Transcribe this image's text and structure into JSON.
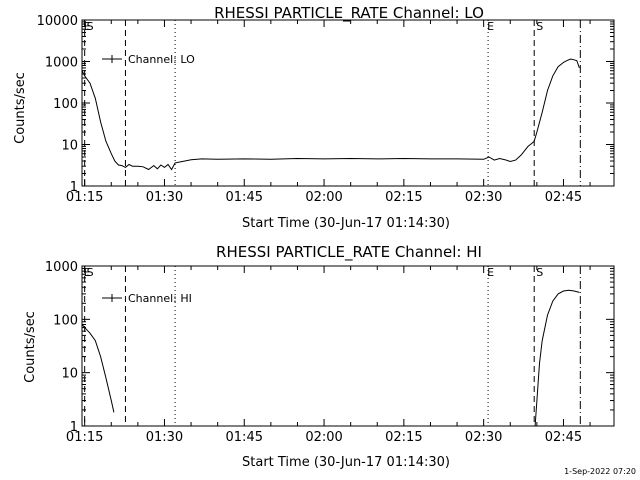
{
  "footer": {
    "timestamp": "1-Sep-2022 07:20"
  },
  "chart_data": [
    {
      "type": "line",
      "title": "RHESSI PARTICLE_RATE Channel: LO",
      "xlabel": "Start Time (30-Jun-17 01:14:30)",
      "ylabel": "Counts/sec",
      "yscale": "log",
      "xlim": [
        "01:14:30",
        "02:54:30"
      ],
      "ylim": [
        1,
        10000
      ],
      "xticks": [
        "01:15",
        "01:30",
        "01:45",
        "02:00",
        "02:15",
        "02:30",
        "02:45"
      ],
      "yticks": [
        "1",
        "10",
        "100",
        "1000",
        "10000"
      ],
      "legend": {
        "position": "top-left",
        "entries": [
          "Channel: LO"
        ]
      },
      "grid": false,
      "markers": [
        {
          "time": "01:15:00",
          "style": "dotted",
          "label": "E"
        },
        {
          "time": "01:15:00",
          "style": "dashed",
          "label": "S"
        },
        {
          "time": "01:22:40",
          "style": "dashed",
          "label": ""
        },
        {
          "time": "01:32:00",
          "style": "dotted",
          "label": ""
        },
        {
          "time": "02:30:50",
          "style": "dotted",
          "label": "E"
        },
        {
          "time": "02:39:30",
          "style": "dashed",
          "label": "S"
        },
        {
          "time": "02:48:10",
          "style": "dashdot",
          "label": ""
        }
      ],
      "series": [
        {
          "name": "Channel: LO",
          "x": [
            "01:14:30",
            "01:15:00",
            "01:16:00",
            "01:17:00",
            "01:18:00",
            "01:19:00",
            "01:20:00",
            "01:20:40",
            "01:21:20",
            "01:22:00",
            "01:22:40",
            "01:23:20",
            "01:24:00",
            "01:25:00",
            "01:26:00",
            "01:27:00",
            "01:28:00",
            "01:28:40",
            "01:29:20",
            "01:30:00",
            "01:30:40",
            "01:31:20",
            "01:32:00",
            "01:33:00",
            "01:35:00",
            "01:37:00",
            "01:40:00",
            "01:45:00",
            "01:50:00",
            "01:55:00",
            "02:00:00",
            "02:05:00",
            "02:10:00",
            "02:15:00",
            "02:20:00",
            "02:25:00",
            "02:30:00",
            "02:31:00",
            "02:32:00",
            "02:33:00",
            "02:34:00",
            "02:35:00",
            "02:36:00",
            "02:37:00",
            "02:37:40",
            "02:38:20",
            "02:39:00",
            "02:39:30",
            "02:40:00",
            "02:41:00",
            "02:42:00",
            "02:43:00",
            "02:44:00",
            "02:45:00",
            "02:45:40",
            "02:46:20",
            "02:47:00",
            "02:47:30",
            "02:48:00"
          ],
          "y": [
            600,
            450,
            300,
            130,
            35,
            12,
            6,
            4,
            3.2,
            3.1,
            2.8,
            3.3,
            3.0,
            3.0,
            2.9,
            2.5,
            3.1,
            2.6,
            3.2,
            2.8,
            3.3,
            2.5,
            3.6,
            3.8,
            4.3,
            4.5,
            4.4,
            4.5,
            4.4,
            4.6,
            4.5,
            4.6,
            4.5,
            4.6,
            4.5,
            4.5,
            4.4,
            5.0,
            4.2,
            4.6,
            4.3,
            3.9,
            4.2,
            5.5,
            7.0,
            9.0,
            10.5,
            12,
            20,
            60,
            200,
            450,
            750,
            950,
            1050,
            1150,
            1100,
            1050,
            700
          ]
        }
      ]
    },
    {
      "type": "line",
      "title": "RHESSI PARTICLE_RATE Channel: HI",
      "xlabel": "Start Time (30-Jun-17 01:14:30)",
      "ylabel": "Counts/sec",
      "yscale": "log",
      "xlim": [
        "01:14:30",
        "02:54:30"
      ],
      "ylim": [
        1,
        1000
      ],
      "xticks": [
        "01:15",
        "01:30",
        "01:45",
        "02:00",
        "02:15",
        "02:30",
        "02:45"
      ],
      "yticks": [
        "1",
        "10",
        "100",
        "1000"
      ],
      "legend": {
        "position": "top-left",
        "entries": [
          "Channel: HI"
        ]
      },
      "grid": false,
      "markers": [
        {
          "time": "01:15:00",
          "style": "dotted",
          "label": "E"
        },
        {
          "time": "01:15:00",
          "style": "dashed",
          "label": "S"
        },
        {
          "time": "01:22:40",
          "style": "dashed",
          "label": ""
        },
        {
          "time": "01:32:00",
          "style": "dotted",
          "label": ""
        },
        {
          "time": "02:30:50",
          "style": "dotted",
          "label": "E"
        },
        {
          "time": "02:39:30",
          "style": "dashed",
          "label": "S"
        },
        {
          "time": "02:48:10",
          "style": "dashdot",
          "label": ""
        }
      ],
      "series": [
        {
          "name": "Channel: HI",
          "x": [
            "01:14:30",
            "01:15:00",
            "01:16:00",
            "01:17:00",
            "01:18:00",
            "01:19:00",
            "01:20:00",
            "01:20:30"
          ],
          "y": [
            80,
            70,
            55,
            40,
            20,
            8,
            3,
            1.8
          ]
        },
        {
          "name": "Channel: HI",
          "x": [
            "02:39:40",
            "02:40:00",
            "02:40:30",
            "02:41:00",
            "02:42:00",
            "02:43:00",
            "02:44:00",
            "02:45:00",
            "02:46:00",
            "02:47:00",
            "02:48:00"
          ],
          "y": [
            1,
            3,
            15,
            40,
            120,
            220,
            300,
            340,
            350,
            340,
            320
          ]
        }
      ]
    }
  ]
}
